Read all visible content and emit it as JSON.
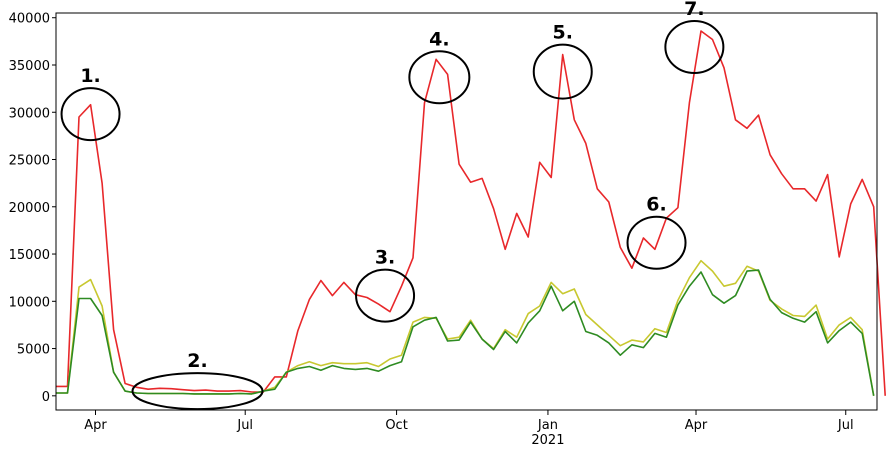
{
  "chart_data": {
    "type": "line",
    "title": "",
    "xlabel": "",
    "ylabel": "",
    "ylim": [
      -1500,
      40500
    ],
    "grid": false,
    "legend": "none",
    "x_start": "2020-03-08",
    "x_end": "2021-07-20",
    "y_ticks": [
      0,
      5000,
      10000,
      15000,
      20000,
      25000,
      30000,
      35000,
      40000
    ],
    "x_ticks": [
      {
        "date": "2020-04-01",
        "label": "Apr",
        "sublabel": ""
      },
      {
        "date": "2020-07-01",
        "label": "Jul",
        "sublabel": ""
      },
      {
        "date": "2020-10-01",
        "label": "Oct",
        "sublabel": ""
      },
      {
        "date": "2021-01-01",
        "label": "Jan",
        "sublabel": "2021"
      },
      {
        "date": "2021-04-01",
        "label": "Apr",
        "sublabel": ""
      },
      {
        "date": "2021-07-01",
        "label": "Jul",
        "sublabel": ""
      }
    ],
    "series": [
      {
        "color": "#e8282b",
        "points": [
          [
            "2020-03-08",
            1000
          ],
          [
            "2020-03-15",
            1000
          ],
          [
            "2020-03-22",
            29500
          ],
          [
            "2020-03-29",
            30800
          ],
          [
            "2020-04-05",
            22500
          ],
          [
            "2020-04-12",
            7000
          ],
          [
            "2020-04-19",
            1300
          ],
          [
            "2020-04-26",
            900
          ],
          [
            "2020-05-03",
            700
          ],
          [
            "2020-05-10",
            800
          ],
          [
            "2020-05-17",
            750
          ],
          [
            "2020-05-24",
            650
          ],
          [
            "2020-05-31",
            550
          ],
          [
            "2020-06-07",
            600
          ],
          [
            "2020-06-14",
            500
          ],
          [
            "2020-06-21",
            500
          ],
          [
            "2020-06-28",
            550
          ],
          [
            "2020-07-05",
            400
          ],
          [
            "2020-07-12",
            400
          ],
          [
            "2020-07-19",
            2000
          ],
          [
            "2020-07-26",
            2000
          ],
          [
            "2020-08-02",
            6900
          ],
          [
            "2020-08-09",
            10200
          ],
          [
            "2020-08-16",
            12200
          ],
          [
            "2020-08-23",
            10600
          ],
          [
            "2020-08-30",
            12000
          ],
          [
            "2020-09-06",
            10700
          ],
          [
            "2020-09-13",
            10400
          ],
          [
            "2020-09-20",
            9700
          ],
          [
            "2020-09-27",
            8900
          ],
          [
            "2020-10-04",
            11600
          ],
          [
            "2020-10-11",
            14600
          ],
          [
            "2020-10-18",
            31000
          ],
          [
            "2020-10-25",
            35600
          ],
          [
            "2020-11-01",
            34000
          ],
          [
            "2020-11-08",
            24500
          ],
          [
            "2020-11-15",
            22600
          ],
          [
            "2020-11-22",
            23000
          ],
          [
            "2020-11-29",
            19800
          ],
          [
            "2020-12-06",
            15500
          ],
          [
            "2020-12-13",
            19300
          ],
          [
            "2020-12-20",
            16800
          ],
          [
            "2020-12-27",
            24700
          ],
          [
            "2021-01-03",
            23100
          ],
          [
            "2021-01-10",
            36100
          ],
          [
            "2021-01-17",
            29200
          ],
          [
            "2021-01-24",
            26700
          ],
          [
            "2021-01-31",
            21900
          ],
          [
            "2021-02-07",
            20500
          ],
          [
            "2021-02-14",
            15700
          ],
          [
            "2021-02-21",
            13500
          ],
          [
            "2021-02-28",
            16700
          ],
          [
            "2021-03-07",
            15500
          ],
          [
            "2021-03-14",
            18800
          ],
          [
            "2021-03-21",
            19900
          ],
          [
            "2021-03-28",
            31000
          ],
          [
            "2021-04-04",
            38600
          ],
          [
            "2021-04-11",
            37700
          ],
          [
            "2021-04-18",
            34700
          ],
          [
            "2021-04-25",
            29200
          ],
          [
            "2021-05-02",
            28300
          ],
          [
            "2021-05-09",
            29700
          ],
          [
            "2021-05-16",
            25500
          ],
          [
            "2021-05-23",
            23500
          ],
          [
            "2021-05-30",
            21900
          ],
          [
            "2021-06-06",
            21900
          ],
          [
            "2021-06-13",
            20600
          ],
          [
            "2021-06-20",
            23400
          ],
          [
            "2021-06-27",
            14700
          ],
          [
            "2021-07-04",
            20300
          ],
          [
            "2021-07-11",
            22900
          ],
          [
            "2021-07-18",
            20000
          ],
          [
            "2021-07-25",
            0
          ]
        ]
      },
      {
        "color": "#c8c830",
        "points": [
          [
            "2020-03-08",
            300
          ],
          [
            "2020-03-15",
            300
          ],
          [
            "2020-03-22",
            11500
          ],
          [
            "2020-03-29",
            12300
          ],
          [
            "2020-04-05",
            9500
          ],
          [
            "2020-04-12",
            2500
          ],
          [
            "2020-04-19",
            500
          ],
          [
            "2020-04-26",
            300
          ],
          [
            "2020-05-03",
            250
          ],
          [
            "2020-05-10",
            250
          ],
          [
            "2020-05-17",
            250
          ],
          [
            "2020-05-24",
            250
          ],
          [
            "2020-05-31",
            200
          ],
          [
            "2020-06-07",
            200
          ],
          [
            "2020-06-14",
            200
          ],
          [
            "2020-06-21",
            200
          ],
          [
            "2020-06-28",
            250
          ],
          [
            "2020-07-05",
            200
          ],
          [
            "2020-07-12",
            500
          ],
          [
            "2020-07-19",
            900
          ],
          [
            "2020-07-26",
            2500
          ],
          [
            "2020-08-02",
            3200
          ],
          [
            "2020-08-09",
            3600
          ],
          [
            "2020-08-16",
            3200
          ],
          [
            "2020-08-23",
            3500
          ],
          [
            "2020-08-30",
            3400
          ],
          [
            "2020-09-06",
            3400
          ],
          [
            "2020-09-13",
            3500
          ],
          [
            "2020-09-20",
            3100
          ],
          [
            "2020-09-27",
            3900
          ],
          [
            "2020-10-04",
            4300
          ],
          [
            "2020-10-11",
            7800
          ],
          [
            "2020-10-18",
            8300
          ],
          [
            "2020-10-25",
            8200
          ],
          [
            "2020-11-01",
            6000
          ],
          [
            "2020-11-08",
            6200
          ],
          [
            "2020-11-15",
            8000
          ],
          [
            "2020-11-22",
            6000
          ],
          [
            "2020-11-29",
            5000
          ],
          [
            "2020-12-06",
            7000
          ],
          [
            "2020-12-13",
            6200
          ],
          [
            "2020-12-20",
            8700
          ],
          [
            "2020-12-27",
            9500
          ],
          [
            "2021-01-03",
            12000
          ],
          [
            "2021-01-10",
            10800
          ],
          [
            "2021-01-17",
            11300
          ],
          [
            "2021-01-24",
            8600
          ],
          [
            "2021-01-31",
            7500
          ],
          [
            "2021-02-07",
            6400
          ],
          [
            "2021-02-14",
            5300
          ],
          [
            "2021-02-21",
            5900
          ],
          [
            "2021-02-28",
            5700
          ],
          [
            "2021-03-07",
            7100
          ],
          [
            "2021-03-14",
            6700
          ],
          [
            "2021-03-21",
            10100
          ],
          [
            "2021-03-28",
            12500
          ],
          [
            "2021-04-04",
            14300
          ],
          [
            "2021-04-11",
            13200
          ],
          [
            "2021-04-18",
            11600
          ],
          [
            "2021-04-25",
            11900
          ],
          [
            "2021-05-02",
            13700
          ],
          [
            "2021-05-09",
            13200
          ],
          [
            "2021-05-16",
            10100
          ],
          [
            "2021-05-23",
            9200
          ],
          [
            "2021-05-30",
            8500
          ],
          [
            "2021-06-06",
            8400
          ],
          [
            "2021-06-13",
            9600
          ],
          [
            "2021-06-20",
            6000
          ],
          [
            "2021-06-27",
            7500
          ],
          [
            "2021-07-04",
            8300
          ],
          [
            "2021-07-11",
            7000
          ],
          [
            "2021-07-18",
            0
          ]
        ]
      },
      {
        "color": "#2e8b22",
        "points": [
          [
            "2020-03-08",
            300
          ],
          [
            "2020-03-15",
            300
          ],
          [
            "2020-03-22",
            10300
          ],
          [
            "2020-03-29",
            10300
          ],
          [
            "2020-04-05",
            8500
          ],
          [
            "2020-04-12",
            2500
          ],
          [
            "2020-04-19",
            500
          ],
          [
            "2020-04-26",
            300
          ],
          [
            "2020-05-03",
            250
          ],
          [
            "2020-05-10",
            250
          ],
          [
            "2020-05-17",
            250
          ],
          [
            "2020-05-24",
            250
          ],
          [
            "2020-05-31",
            200
          ],
          [
            "2020-06-07",
            200
          ],
          [
            "2020-06-14",
            200
          ],
          [
            "2020-06-21",
            200
          ],
          [
            "2020-06-28",
            250
          ],
          [
            "2020-07-05",
            200
          ],
          [
            "2020-07-12",
            500
          ],
          [
            "2020-07-19",
            700
          ],
          [
            "2020-07-26",
            2500
          ],
          [
            "2020-08-02",
            2900
          ],
          [
            "2020-08-09",
            3100
          ],
          [
            "2020-08-16",
            2700
          ],
          [
            "2020-08-23",
            3200
          ],
          [
            "2020-08-30",
            2900
          ],
          [
            "2020-09-06",
            2800
          ],
          [
            "2020-09-13",
            2900
          ],
          [
            "2020-09-20",
            2600
          ],
          [
            "2020-09-27",
            3200
          ],
          [
            "2020-10-04",
            3600
          ],
          [
            "2020-10-11",
            7300
          ],
          [
            "2020-10-18",
            8000
          ],
          [
            "2020-10-25",
            8300
          ],
          [
            "2020-11-01",
            5800
          ],
          [
            "2020-11-08",
            5900
          ],
          [
            "2020-11-15",
            7800
          ],
          [
            "2020-11-22",
            6000
          ],
          [
            "2020-11-29",
            4900
          ],
          [
            "2020-12-06",
            6800
          ],
          [
            "2020-12-13",
            5600
          ],
          [
            "2020-12-20",
            7700
          ],
          [
            "2020-12-27",
            9000
          ],
          [
            "2021-01-03",
            11600
          ],
          [
            "2021-01-10",
            9000
          ],
          [
            "2021-01-17",
            10000
          ],
          [
            "2021-01-24",
            6800
          ],
          [
            "2021-01-31",
            6400
          ],
          [
            "2021-02-07",
            5600
          ],
          [
            "2021-02-14",
            4300
          ],
          [
            "2021-02-21",
            5400
          ],
          [
            "2021-02-28",
            5100
          ],
          [
            "2021-03-07",
            6600
          ],
          [
            "2021-03-14",
            6200
          ],
          [
            "2021-03-21",
            9600
          ],
          [
            "2021-03-28",
            11600
          ],
          [
            "2021-04-04",
            13100
          ],
          [
            "2021-04-11",
            10700
          ],
          [
            "2021-04-18",
            9800
          ],
          [
            "2021-04-25",
            10600
          ],
          [
            "2021-05-02",
            13200
          ],
          [
            "2021-05-09",
            13300
          ],
          [
            "2021-05-16",
            10200
          ],
          [
            "2021-05-23",
            8800
          ],
          [
            "2021-05-30",
            8200
          ],
          [
            "2021-06-06",
            7800
          ],
          [
            "2021-06-13",
            8900
          ],
          [
            "2021-06-20",
            5600
          ],
          [
            "2021-06-27",
            6900
          ],
          [
            "2021-07-04",
            7800
          ],
          [
            "2021-07-11",
            6600
          ],
          [
            "2021-07-18",
            0
          ]
        ]
      }
    ],
    "annotations": [
      {
        "label": "1.",
        "date": "2020-03-29",
        "value": 29800
      },
      {
        "label": "2.",
        "date": "2020-06-02",
        "value": 500
      },
      {
        "label": "3.",
        "date": "2020-09-24",
        "value": 10600
      },
      {
        "label": "4.",
        "date": "2020-10-27",
        "value": 33700
      },
      {
        "label": "5.",
        "date": "2021-01-10",
        "value": 34300
      },
      {
        "label": "6.",
        "date": "2021-03-08",
        "value": 16200
      },
      {
        "label": "7.",
        "date": "2021-03-31",
        "value": 36900
      }
    ]
  }
}
